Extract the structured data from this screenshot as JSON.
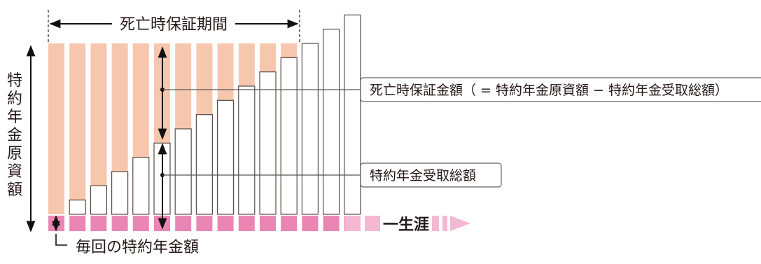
{
  "top_span_label": "死亡時保証期間",
  "vertical_label": "特約年金原資額",
  "callout_guarantee": "死亡時保証金額（ = 特約年金原資額 − 特約年金受取総額）",
  "callout_received": "特約年金受取総額",
  "bottom_label": "毎回の特約年金額",
  "lifetime_label": "一生涯",
  "colors": {
    "salmon": "#f7c7ad",
    "pink": "#ea86b4",
    "pink_light": "#f4b8d3",
    "outline": "#5a4a48",
    "text": "#231815"
  },
  "cumulative_bars": [
    0,
    1,
    2,
    3,
    4,
    5,
    6,
    7,
    8,
    9,
    10,
    11,
    12,
    13,
    14
  ],
  "guarantee_years": 12
}
